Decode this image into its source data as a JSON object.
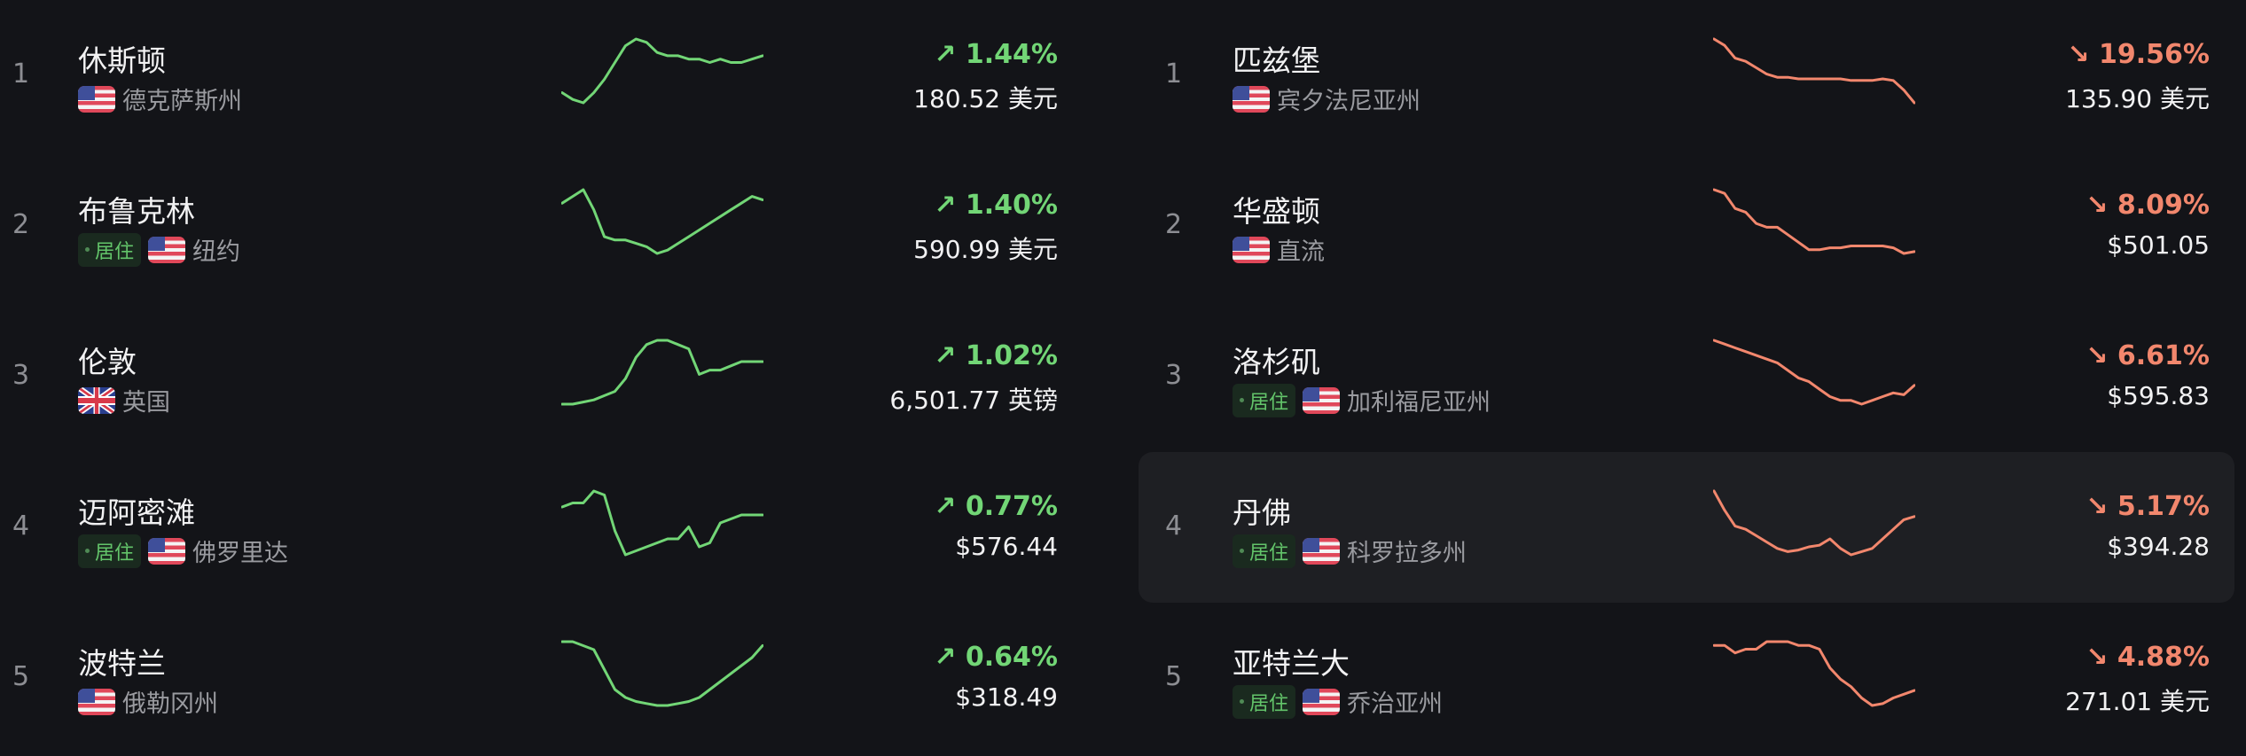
{
  "colors": {
    "up": "#72d676",
    "down": "#f2876d",
    "background": "#131418",
    "highlight": "#1e1f23"
  },
  "gainers": [
    {
      "rank": "1",
      "name": "休斯顿",
      "flag": "us-flag",
      "region": "德克萨斯州",
      "badge": "",
      "change": "↗ 1.44%",
      "price": "180.52 美元",
      "spark": [
        4,
        2,
        1,
        4,
        8,
        13,
        18,
        20,
        19,
        16,
        15,
        15,
        14,
        14,
        13,
        14,
        13,
        13,
        14,
        15
      ]
    },
    {
      "rank": "2",
      "name": "布鲁克林",
      "flag": "us-flag",
      "region": "纽约",
      "badge": "居住",
      "change": "↗ 1.40%",
      "price": "590.99 美元",
      "spark": [
        16,
        18,
        20,
        14,
        6,
        5,
        5,
        4,
        3,
        1,
        2,
        4,
        6,
        8,
        10,
        12,
        14,
        16,
        18,
        17
      ]
    },
    {
      "rank": "3",
      "name": "伦敦",
      "flag": "uk-flag",
      "region": "英国",
      "badge": "",
      "change": "↗ 1.02%",
      "price": "6,501.77 英镑",
      "spark": [
        1,
        1,
        1.5,
        2,
        3,
        4,
        7,
        12,
        15,
        16,
        16,
        15,
        14,
        8,
        9,
        9,
        10,
        11,
        11,
        11
      ]
    },
    {
      "rank": "4",
      "name": "迈阿密滩",
      "flag": "us-flag",
      "region": "佛罗里达",
      "badge": "居住",
      "change": "↗ 0.77%",
      "price": "$576.44",
      "spark": [
        14,
        15,
        15,
        18,
        17,
        8,
        2,
        3,
        4,
        5,
        6,
        6,
        9,
        4,
        5,
        10,
        11,
        12,
        12,
        12
      ]
    },
    {
      "rank": "5",
      "name": "波特兰",
      "flag": "us-flag",
      "region": "俄勒冈州",
      "badge": "",
      "change": "↗ 0.64%",
      "price": "$318.49",
      "spark": [
        17,
        17,
        16,
        15,
        10,
        5,
        3,
        2,
        1.5,
        1,
        1,
        1.5,
        2,
        3,
        5,
        7,
        9,
        11,
        13,
        16
      ]
    }
  ],
  "losers": [
    {
      "rank": "1",
      "name": "匹兹堡",
      "flag": "us-flag",
      "region": "宾夕法尼亚州",
      "badge": "",
      "change": "↘ 19.56%",
      "price": "135.90 美元",
      "spark": [
        20,
        18,
        14,
        13,
        11,
        9,
        8,
        8,
        7.5,
        7.5,
        7.5,
        7.5,
        7.5,
        7,
        7,
        7,
        7.5,
        7,
        4,
        0
      ]
    },
    {
      "rank": "2",
      "name": "华盛顿",
      "flag": "us-flag",
      "region": "直流",
      "badge": "",
      "change": "↘ 8.09%",
      "price": "$501.05",
      "spark": [
        20,
        19,
        15,
        14,
        11,
        10,
        10,
        8,
        6,
        4,
        4,
        4.5,
        4.5,
        5,
        5,
        5,
        5,
        4.5,
        3,
        3.5
      ]
    },
    {
      "rank": "3",
      "name": "洛杉矶",
      "flag": "us-flag",
      "region": "加利福尼亚州",
      "badge": "居住",
      "change": "↘ 6.61%",
      "price": "$595.83",
      "spark": [
        20,
        19,
        18,
        17,
        16,
        15,
        14,
        12,
        10,
        9,
        7,
        5,
        4,
        4,
        3,
        4,
        5,
        6,
        5.5,
        8
      ]
    },
    {
      "rank": "4",
      "name": "丹佛",
      "flag": "us-flag",
      "region": "科罗拉多州",
      "badge": "居住",
      "change": "↘ 5.17%",
      "price": "$394.28",
      "spark": [
        20,
        14,
        9,
        8,
        6,
        4,
        2,
        1,
        1.5,
        2.5,
        3,
        5,
        2,
        0,
        1,
        2,
        5,
        8,
        11,
        12
      ]
    },
    {
      "rank": "5",
      "name": "亚特兰大",
      "flag": "us-flag",
      "region": "乔治亚州",
      "badge": "居住",
      "change": "↘ 4.88%",
      "price": "271.01 美元",
      "spark": [
        16,
        16,
        14,
        15,
        15,
        17,
        17,
        17,
        16,
        16,
        15,
        10,
        7,
        5,
        2,
        0,
        0.5,
        2,
        3,
        4
      ]
    }
  ],
  "highlighted_loser_rank": "4"
}
